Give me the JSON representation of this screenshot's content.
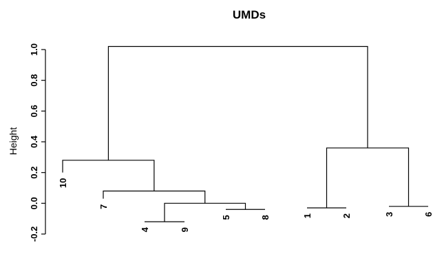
{
  "chart_data": {
    "type": "dendrogram",
    "title": "UMDs",
    "xlabel": "",
    "ylabel": "Height",
    "ylim": [
      -0.2,
      1.0
    ],
    "yticks": [
      -0.2,
      0.0,
      0.2,
      0.4,
      0.6,
      0.8,
      1.0
    ],
    "ytick_labels": [
      "-0.2",
      "0.0",
      "0.2",
      "0.4",
      "0.6",
      "0.8",
      "1.0"
    ],
    "grid": false,
    "leaf_order": [
      "10",
      "7",
      "4",
      "9",
      "5",
      "8",
      "1",
      "2",
      "3",
      "6"
    ],
    "leaves": [
      {
        "label": "10",
        "height": 0.2
      },
      {
        "label": "7",
        "height": 0.03
      },
      {
        "label": "4",
        "height": -0.12
      },
      {
        "label": "9",
        "height": -0.12
      },
      {
        "label": "5",
        "height": -0.04
      },
      {
        "label": "8",
        "height": -0.04
      },
      {
        "label": "1",
        "height": -0.03
      },
      {
        "label": "2",
        "height": -0.03
      },
      {
        "label": "3",
        "height": -0.02
      },
      {
        "label": "6",
        "height": -0.02
      }
    ],
    "merges": [
      {
        "left": "4",
        "right": "9",
        "height": -0.12
      },
      {
        "left": "5",
        "right": "8",
        "height": -0.04
      },
      {
        "left": "1",
        "right": "2",
        "height": -0.03
      },
      {
        "left": "3",
        "right": "6",
        "height": -0.02
      },
      {
        "left": "4-9",
        "right": "5-8",
        "height": 0.0
      },
      {
        "left": "7",
        "right": "4-9-5-8",
        "height": 0.08
      },
      {
        "left": "10",
        "right": "7-4-9-5-8",
        "height": 0.28
      },
      {
        "left": "1-2",
        "right": "3-6",
        "height": 0.36
      },
      {
        "left": "10-7-4-9-5-8",
        "right": "1-2-3-6",
        "height": 1.02
      }
    ]
  }
}
